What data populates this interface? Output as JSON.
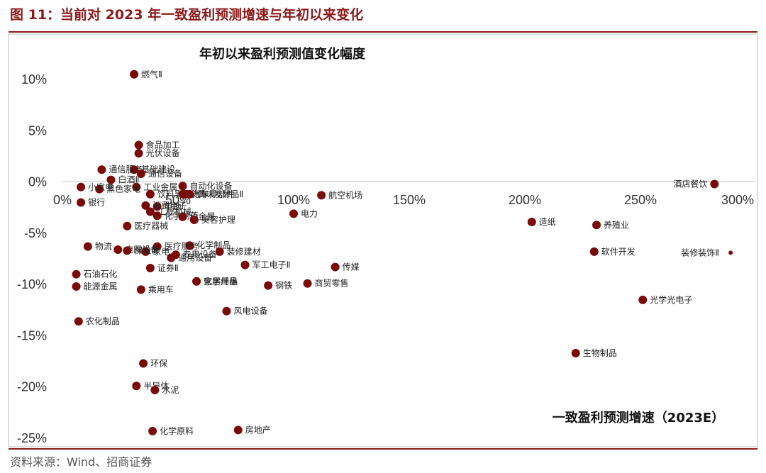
{
  "figure": {
    "title": "图 11：当前对 2023 年一致盈利预测增速与年初以来变化",
    "source": "资料来源：Wind、招商证券"
  },
  "chart_data": {
    "type": "scatter",
    "title": "年初以来盈利预测值变化幅度",
    "xlabel": "一致盈利预测增速（2023E）",
    "ylabel": "",
    "xlim": [
      0,
      3.0
    ],
    "ylim": [
      -0.25,
      0.11
    ],
    "x_ticks": [
      "0%",
      "50%",
      "100%",
      "150%",
      "200%",
      "250%",
      "300%"
    ],
    "y_ticks": [
      "10%",
      "5%",
      "0%",
      "-5%",
      "-10%",
      "-15%",
      "-20%",
      "-25%"
    ],
    "grid": false,
    "marker_color": "#7a0b0b",
    "points": [
      {
        "name": "燃气Ⅱ",
        "x": 0.31,
        "y": 0.105
      },
      {
        "name": "食品加工",
        "x": 0.33,
        "y": 0.036
      },
      {
        "name": "光伏设备",
        "x": 0.33,
        "y": 0.028
      },
      {
        "name": "基础建设",
        "x": 0.31,
        "y": 0.012
      },
      {
        "name": "通信服务",
        "x": 0.17,
        "y": 0.012
      },
      {
        "name": "通信设备",
        "x": 0.34,
        "y": 0.008
      },
      {
        "name": "白酒Ⅱ",
        "x": 0.21,
        "y": 0.002
      },
      {
        "name": "工业金属",
        "x": 0.32,
        "y": -0.005
      },
      {
        "name": "饮料乳品",
        "x": 0.38,
        "y": -0.012
      },
      {
        "name": "自动化设备",
        "x": 0.52,
        "y": -0.004
      },
      {
        "name": "汽车零部件",
        "x": 0.53,
        "y": -0.012
      },
      {
        "name": "黑色家电",
        "x": 0.16,
        "y": -0.007
      },
      {
        "name": "装饰",
        "x": 0.52,
        "y": -0.012
      },
      {
        "name": "调味发酵品Ⅱ",
        "x": 0.55,
        "y": -0.012
      },
      {
        "name": "小家电",
        "x": 0.08,
        "y": -0.005
      },
      {
        "name": "电池",
        "x": 0.41,
        "y": -0.024
      },
      {
        "name": "消费电子",
        "x": 0.36,
        "y": -0.023
      },
      {
        "name": "工程机械",
        "x": 0.38,
        "y": -0.029
      },
      {
        "name": "化学制药",
        "x": 0.41,
        "y": -0.033
      },
      {
        "name": "小金属",
        "x": 0.52,
        "y": -0.034
      },
      {
        "name": "美容护理",
        "x": 0.57,
        "y": -0.037
      },
      {
        "name": "银行",
        "x": 0.08,
        "y": -0.02
      },
      {
        "name": "医疗器械",
        "x": 0.28,
        "y": -0.043
      },
      {
        "name": "物流",
        "x": 0.11,
        "y": -0.063
      },
      {
        "name": "航空机场",
        "x": 1.12,
        "y": -0.013
      },
      {
        "name": "电力",
        "x": 1.0,
        "y": -0.031
      },
      {
        "name": "化学制品",
        "x": 0.55,
        "y": -0.062
      },
      {
        "name": "装修建材",
        "x": 0.68,
        "y": -0.068
      },
      {
        "name": "医疗服务",
        "x": 0.41,
        "y": -0.063
      },
      {
        "name": "专用设备",
        "x": 0.49,
        "y": -0.071
      },
      {
        "name": "通用设备",
        "x": 0.47,
        "y": -0.074
      },
      {
        "name": "家电",
        "x": 0.36,
        "y": -0.068
      },
      {
        "name": "电网设备",
        "x": 0.24,
        "y": -0.066
      },
      {
        "name": "保险Ⅱ",
        "x": 0.28,
        "y": -0.067
      },
      {
        "name": "证券Ⅱ",
        "x": 0.38,
        "y": -0.084
      },
      {
        "name": "军工电子Ⅱ",
        "x": 0.79,
        "y": -0.081
      },
      {
        "name": "传媒",
        "x": 1.18,
        "y": -0.083
      },
      {
        "name": "石油石化",
        "x": 0.06,
        "y": -0.09
      },
      {
        "name": "能源金属",
        "x": 0.06,
        "y": -0.102
      },
      {
        "name": "化学纤维",
        "x": 0.58,
        "y": -0.097
      },
      {
        "name": "钢铁",
        "x": 0.89,
        "y": -0.101
      },
      {
        "name": "商贸零售",
        "x": 1.06,
        "y": -0.099
      },
      {
        "name": "乘用车",
        "x": 0.34,
        "y": -0.105
      },
      {
        "name": "家居用品",
        "x": 0.58,
        "y": -0.097
      },
      {
        "name": "风电设备",
        "x": 0.71,
        "y": -0.126
      },
      {
        "name": "农化制品",
        "x": 0.07,
        "y": -0.136
      },
      {
        "name": "环保",
        "x": 0.35,
        "y": -0.177
      },
      {
        "name": "半导体",
        "x": 0.32,
        "y": -0.199
      },
      {
        "name": "水泥",
        "x": 0.4,
        "y": -0.203
      },
      {
        "name": "化学原料",
        "x": 0.39,
        "y": -0.243
      },
      {
        "name": "房地产",
        "x": 0.76,
        "y": -0.242
      },
      {
        "name": "酒店餐饮",
        "x": 2.82,
        "y": -0.002
      },
      {
        "name": "造纸",
        "x": 2.03,
        "y": -0.039
      },
      {
        "name": "养殖业",
        "x": 2.31,
        "y": -0.042
      },
      {
        "name": "软件开发",
        "x": 2.3,
        "y": -0.068
      },
      {
        "name": "装修装饰Ⅱ",
        "x": 2.89,
        "y": -0.069
      },
      {
        "name": "光学光电子",
        "x": 2.51,
        "y": -0.115
      },
      {
        "name": "生物制品",
        "x": 2.22,
        "y": -0.167
      }
    ]
  }
}
